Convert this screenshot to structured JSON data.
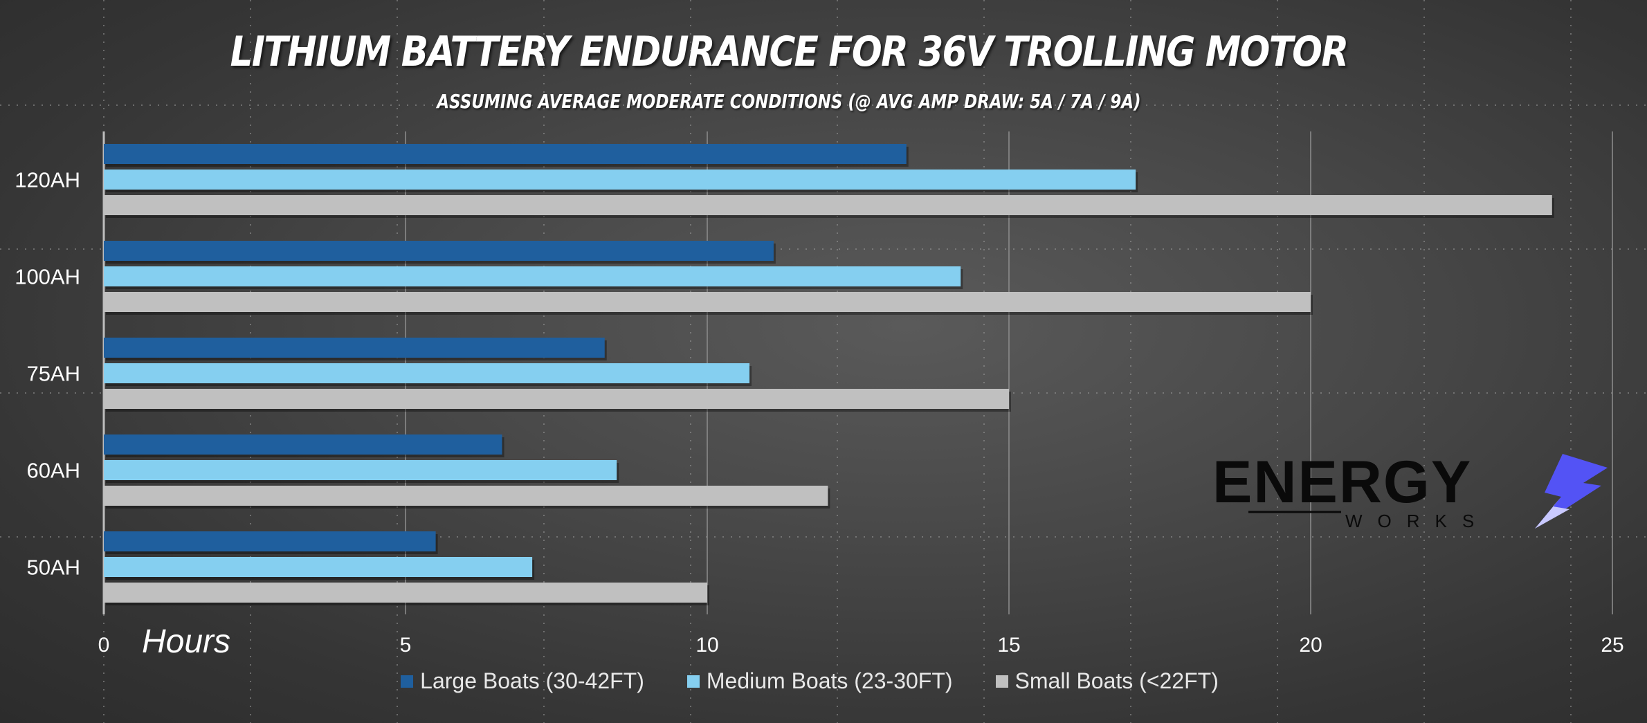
{
  "chart_data": {
    "type": "bar",
    "orientation": "horizontal",
    "title": "LITHIUM BATTERY ENDURANCE FOR 36V TROLLING MOTOR",
    "subtitle": "ASSUMING AVERAGE MODERATE CONDITIONS (@ AVG AMP DRAW: 5A / 7A / 9A)",
    "xlabel": "Hours",
    "ylabel": "",
    "xlim": [
      0,
      25
    ],
    "xticks": [
      0,
      5,
      10,
      15,
      20,
      25
    ],
    "categories": [
      "120AH",
      "100AH",
      "75AH",
      "60AH",
      "50AH"
    ],
    "series": [
      {
        "name": "Large Boats (30-42FT)",
        "color": "#1f5f9e",
        "values": [
          13.3,
          11.1,
          8.3,
          6.6,
          5.5
        ]
      },
      {
        "name": "Medium Boats (23-30FT)",
        "color": "#85cff0",
        "values": [
          17.1,
          14.2,
          10.7,
          8.5,
          7.1
        ]
      },
      {
        "name": "Small Boats (<22FT)",
        "color": "#c0c0c0",
        "values": [
          24,
          20,
          15,
          12,
          10
        ]
      }
    ],
    "grid": true,
    "legend_position": "bottom"
  },
  "logo": {
    "main_text": "ENERGY",
    "sub_text": "WORKS",
    "icon": "lightning-bolt-icon",
    "accent_color": "#5b5bff"
  }
}
